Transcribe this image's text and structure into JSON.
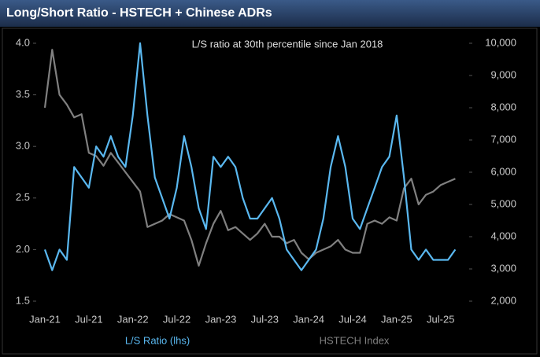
{
  "chart_data": {
    "type": "line",
    "title": "Long/Short Ratio - HSTECH + Chinese ADRs",
    "annotation": "L/S ratio at 30th percentile  since Jan 2018",
    "categories": [
      "Jan-21",
      null,
      null,
      null,
      null,
      null,
      "Jul-21",
      null,
      null,
      null,
      null,
      null,
      "Jan-22",
      null,
      null,
      null,
      null,
      null,
      "Jul-22",
      null,
      null,
      null,
      null,
      null,
      "Jan-23",
      null,
      null,
      null,
      null,
      null,
      "Jul-23",
      null,
      null,
      null,
      null,
      null,
      "Jan-24",
      null,
      null,
      null,
      null,
      null,
      "Jul-24",
      null,
      null,
      null,
      null,
      null,
      "Jan-25",
      null,
      null,
      null,
      null,
      null,
      "Jul-25",
      null,
      null
    ],
    "series": [
      {
        "name": "L/S Ratio (lhs)",
        "color": "#5ab8f0",
        "axis": "y",
        "values": [
          2.0,
          1.8,
          2.0,
          1.9,
          2.8,
          2.7,
          2.6,
          3.0,
          2.9,
          3.1,
          2.9,
          2.8,
          3.3,
          4.0,
          3.3,
          2.7,
          2.5,
          2.3,
          2.6,
          3.1,
          2.8,
          2.4,
          2.2,
          2.9,
          2.8,
          2.9,
          2.8,
          2.5,
          2.3,
          2.3,
          2.4,
          2.5,
          2.3,
          2.0,
          1.9,
          1.8,
          1.9,
          2.0,
          2.3,
          2.8,
          3.1,
          2.8,
          2.3,
          2.2,
          2.4,
          2.6,
          2.8,
          2.9,
          3.3,
          2.7,
          2.0,
          1.9,
          2.0,
          1.9,
          1.9,
          1.9,
          2.0
        ]
      },
      {
        "name": "HSTECH Index",
        "color": "#808080",
        "axis": "y2",
        "values": [
          8000,
          9800,
          8400,
          8100,
          7700,
          7800,
          6600,
          6500,
          6200,
          6600,
          6300,
          6000,
          5700,
          5400,
          4300,
          4400,
          4500,
          4700,
          4600,
          4500,
          3900,
          3100,
          3800,
          4400,
          4800,
          4200,
          4300,
          4100,
          3900,
          4100,
          4400,
          4000,
          4000,
          3800,
          3900,
          3500,
          3300,
          3500,
          3600,
          3700,
          3900,
          3600,
          3500,
          3500,
          4400,
          4500,
          4400,
          4600,
          4500,
          5500,
          5800,
          5000,
          5300,
          5400,
          5600,
          5700,
          5800
        ]
      }
    ],
    "ylim": [
      1.5,
      4.0
    ],
    "yticks": [
      {
        "value": 1.5,
        "label": "1.5"
      },
      {
        "value": 2,
        "label": "2.0"
      },
      {
        "value": 2.5,
        "label": "2.5"
      },
      {
        "value": 3,
        "label": "3.0"
      },
      {
        "value": 3.5,
        "label": "3.5"
      },
      {
        "value": 4,
        "label": "4.0"
      }
    ],
    "y2lim": [
      2000,
      10000
    ],
    "y2ticks": [
      {
        "value": 2000,
        "label": "2,000"
      },
      {
        "value": 3000,
        "label": "3,000"
      },
      {
        "value": 4000,
        "label": "4,000"
      },
      {
        "value": 5000,
        "label": "5,000"
      },
      {
        "value": 6000,
        "label": "6,000"
      },
      {
        "value": 7000,
        "label": "7,000"
      },
      {
        "value": 8000,
        "label": "8,000"
      },
      {
        "value": 9000,
        "label": "9,000"
      },
      {
        "value": 10000,
        "label": "10,000"
      }
    ],
    "grid": false
  }
}
